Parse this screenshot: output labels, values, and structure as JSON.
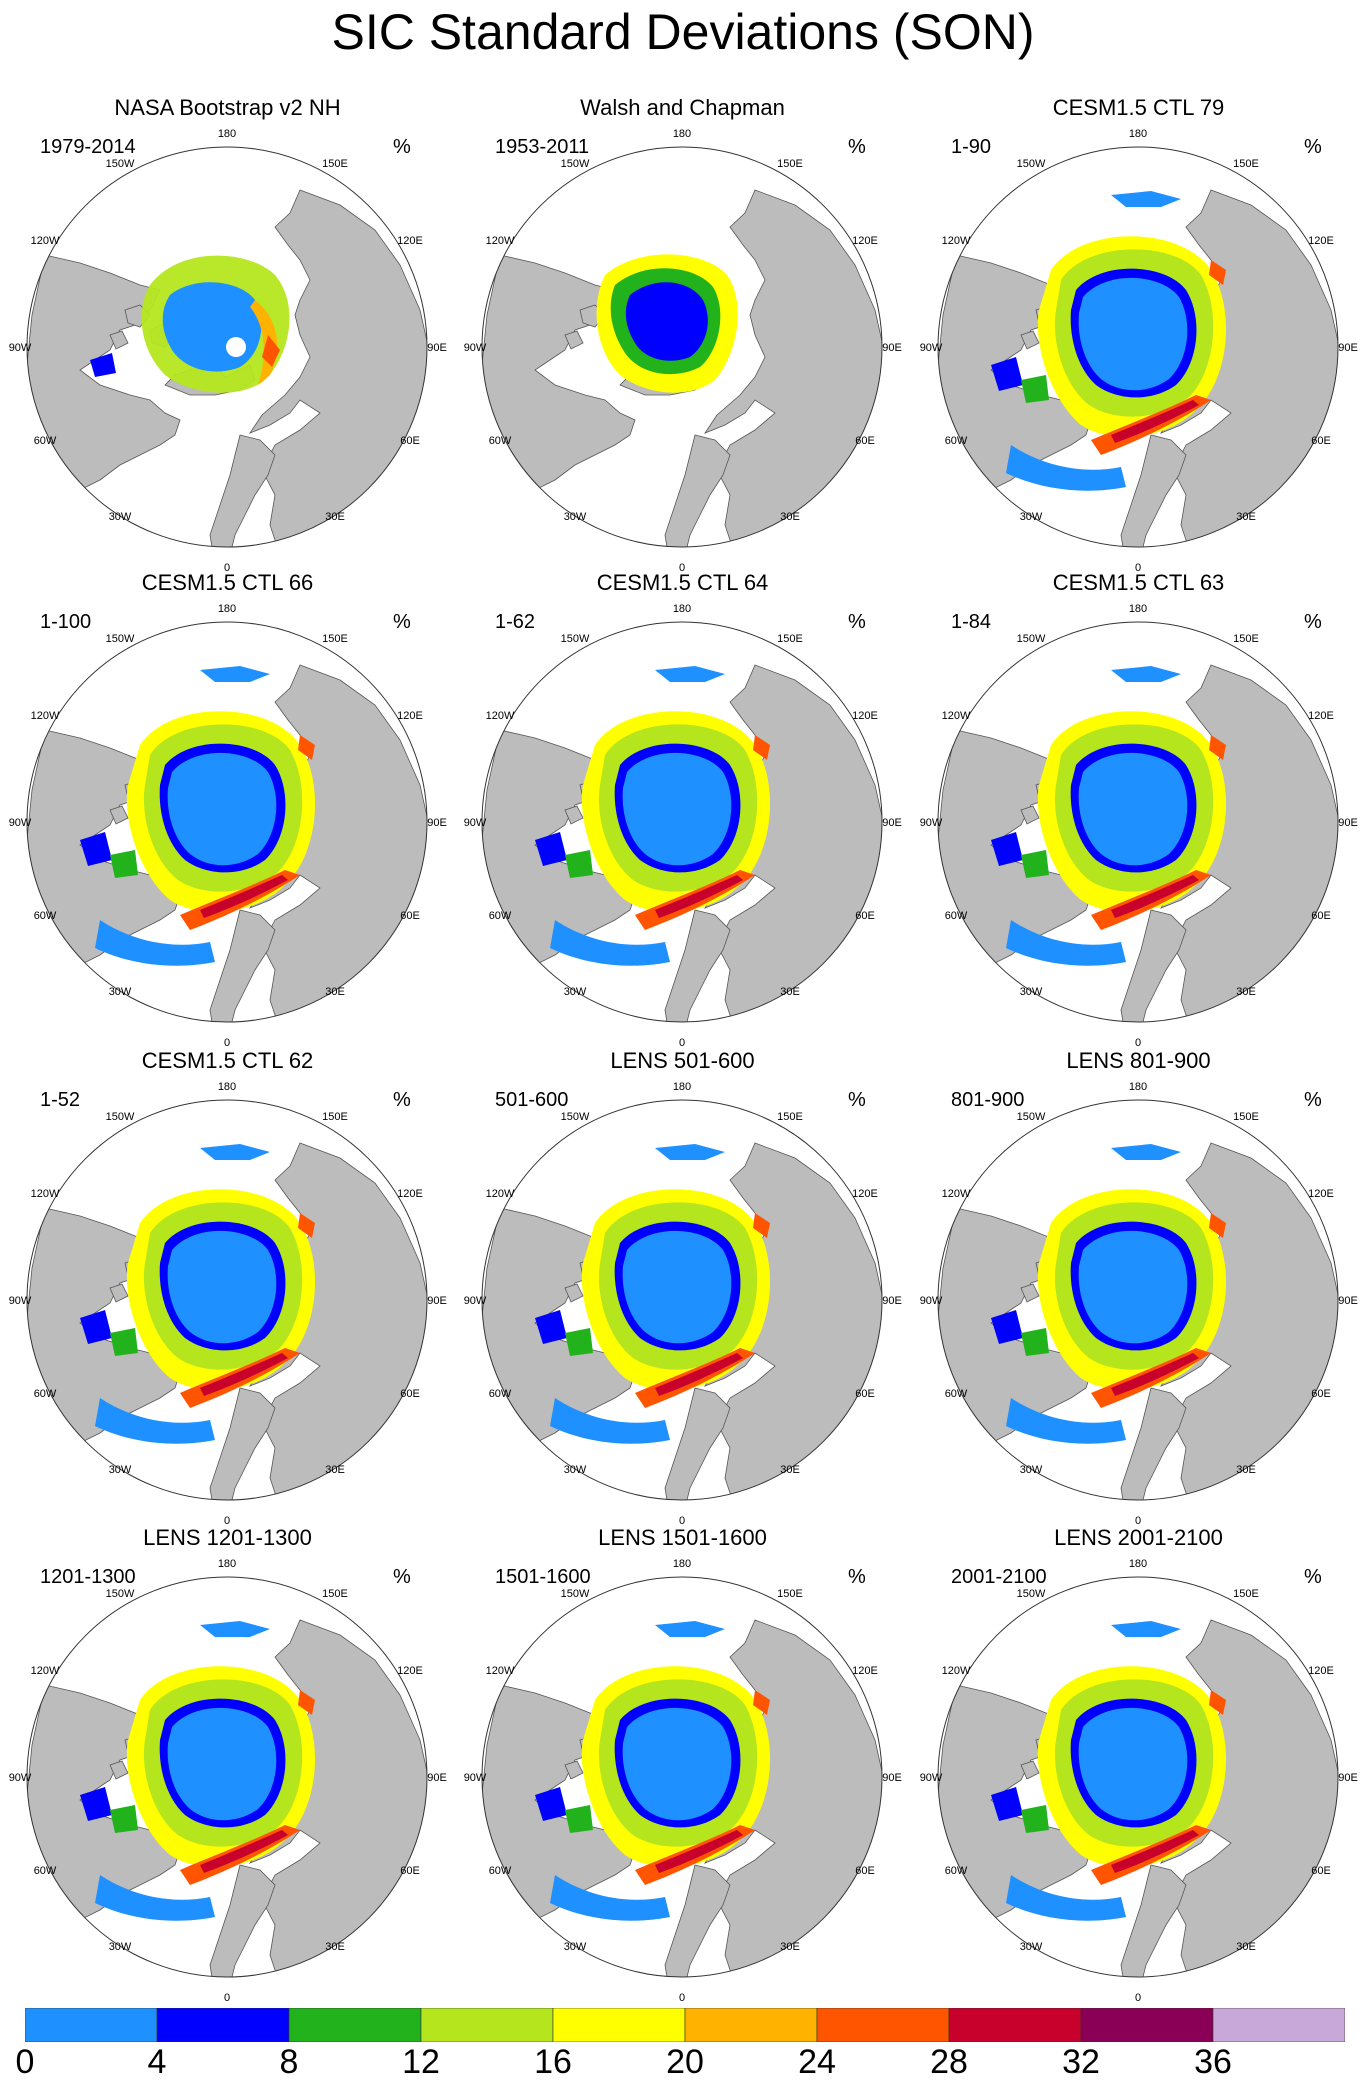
{
  "title": "SIC Standard Deviations (SON)",
  "unit_label": "%",
  "longitude_labels": {
    "top": "180",
    "bottom": "0",
    "p150W": "150W",
    "p150E": "150E",
    "p120W": "120W",
    "p120E": "120E",
    "p90W": "90W",
    "p90E": "90E",
    "p60W": "60W",
    "p60E": "60E",
    "p30W": "30W",
    "p30E": "30E"
  },
  "panels": [
    {
      "title": "NASA Bootstrap v2 NH",
      "range": "1979-2014",
      "style": "obs"
    },
    {
      "title": "Walsh and Chapman",
      "range": "1953-2011",
      "style": "walsh"
    },
    {
      "title": "CESM1.5 CTL 79",
      "range": "1-90",
      "style": "model"
    },
    {
      "title": "CESM1.5 CTL 66",
      "range": "1-100",
      "style": "model"
    },
    {
      "title": "CESM1.5 CTL 64",
      "range": "1-62",
      "style": "model"
    },
    {
      "title": "CESM1.5 CTL 63",
      "range": "1-84",
      "style": "model"
    },
    {
      "title": "CESM1.5 CTL 62",
      "range": "1-52",
      "style": "model"
    },
    {
      "title": "LENS 501-600",
      "range": "501-600",
      "style": "model"
    },
    {
      "title": "LENS 801-900",
      "range": "801-900",
      "style": "model"
    },
    {
      "title": "LENS 1201-1300",
      "range": "1201-1300",
      "style": "model"
    },
    {
      "title": "LENS 1501-1600",
      "range": "1501-1600",
      "style": "model"
    },
    {
      "title": "LENS 2001-2100",
      "range": "2001-2100",
      "style": "model"
    }
  ],
  "colorbar": {
    "labels": [
      "0",
      "4",
      "8",
      "12",
      "16",
      "20",
      "24",
      "28",
      "32",
      "36"
    ],
    "boundaries": [
      0,
      4,
      8,
      12,
      16,
      20,
      24,
      28,
      32,
      36,
      40
    ],
    "colors": [
      "#1e90ff",
      "#0000ff",
      "#22b31c",
      "#b5e61d",
      "#ffff00",
      "#ffb300",
      "#ff5500",
      "#c8002c",
      "#8b0057",
      "#c8a8d8"
    ]
  },
  "colors": {
    "land": "#bcbcbc",
    "ocean": "#ffffff",
    "coast": "#555555"
  }
}
